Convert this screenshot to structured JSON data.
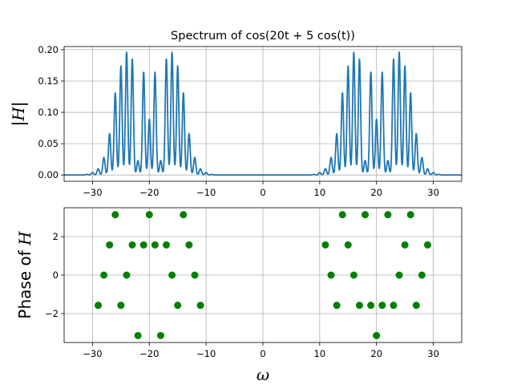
{
  "chart_data": [
    {
      "type": "line",
      "title": "Spectrum of cos(20t + 5 cos(t))",
      "xlabel": "",
      "ylabel": "|H|",
      "xlim": [
        -35,
        35
      ],
      "ylim": [
        -0.01,
        0.205
      ],
      "xticks": [
        -30,
        -20,
        -10,
        0,
        10,
        20,
        30
      ],
      "xtick_labels": [
        "−30",
        "−20",
        "−10",
        "0",
        "10",
        "20",
        "30"
      ],
      "yticks": [
        0.0,
        0.05,
        0.1,
        0.15,
        0.2
      ],
      "ytick_labels": [
        "0.00",
        "0.05",
        "0.10",
        "0.15",
        "0.20"
      ],
      "grid": true,
      "color": "#1f77b4",
      "peak_x": [
        -31,
        -30,
        -29,
        -28,
        -27,
        -26,
        -25,
        -24,
        -23,
        -22,
        -21,
        -20,
        -19,
        -18,
        -17,
        -16,
        -15,
        -14,
        -13,
        -12,
        -11,
        -10,
        -9,
        9,
        10,
        11,
        12,
        13,
        14,
        15,
        16,
        17,
        18,
        19,
        20,
        21,
        22,
        23,
        24,
        25,
        26,
        27,
        28,
        29,
        30,
        31
      ],
      "peak_y": [
        0.001,
        0.004,
        0.01,
        0.028,
        0.066,
        0.131,
        0.174,
        0.196,
        0.185,
        0.023,
        0.164,
        0.089,
        0.164,
        0.023,
        0.185,
        0.196,
        0.174,
        0.131,
        0.066,
        0.028,
        0.01,
        0.004,
        0.001,
        0.001,
        0.004,
        0.01,
        0.028,
        0.066,
        0.131,
        0.174,
        0.196,
        0.185,
        0.023,
        0.164,
        0.089,
        0.164,
        0.023,
        0.185,
        0.196,
        0.174,
        0.131,
        0.066,
        0.028,
        0.01,
        0.004,
        0.001
      ]
    },
    {
      "type": "scatter",
      "xlabel": "ω",
      "ylabel": "Phase of H",
      "xlim": [
        -35,
        35
      ],
      "ylim": [
        -3.5,
        3.5
      ],
      "xticks": [
        -30,
        -20,
        -10,
        0,
        10,
        20,
        30
      ],
      "xtick_labels": [
        "−30",
        "−20",
        "−10",
        "0",
        "10",
        "20",
        "30"
      ],
      "yticks": [
        -2,
        0,
        2
      ],
      "ytick_labels": [
        "−2",
        "0",
        "2"
      ],
      "grid": true,
      "color": "#008000",
      "x": [
        -29,
        -28,
        -27,
        -26,
        -25,
        -24,
        -23,
        -22,
        -21,
        -20,
        -19,
        -18,
        -17,
        -16,
        -15,
        -14,
        -13,
        -12,
        -11,
        11,
        12,
        13,
        14,
        15,
        16,
        17,
        18,
        19,
        20,
        21,
        22,
        23,
        24,
        25,
        26,
        27,
        28,
        29
      ],
      "y": [
        -1.57,
        0,
        1.57,
        3.14,
        -1.57,
        0,
        1.57,
        -3.14,
        1.57,
        3.14,
        1.57,
        -3.14,
        1.57,
        0,
        -1.57,
        3.14,
        1.57,
        0,
        -1.57,
        1.57,
        0,
        -1.57,
        3.14,
        1.57,
        0,
        -1.57,
        3.14,
        -1.57,
        -3.14,
        -1.57,
        3.14,
        -1.57,
        0,
        1.57,
        3.14,
        -1.57,
        0,
        1.57
      ]
    }
  ],
  "axes_labels": {
    "top_ylabel_bars": "|",
    "top_ylabel_letter": "H",
    "bottom_ylabel_prefix": "Phase of ",
    "bottom_ylabel_letter": "H"
  }
}
